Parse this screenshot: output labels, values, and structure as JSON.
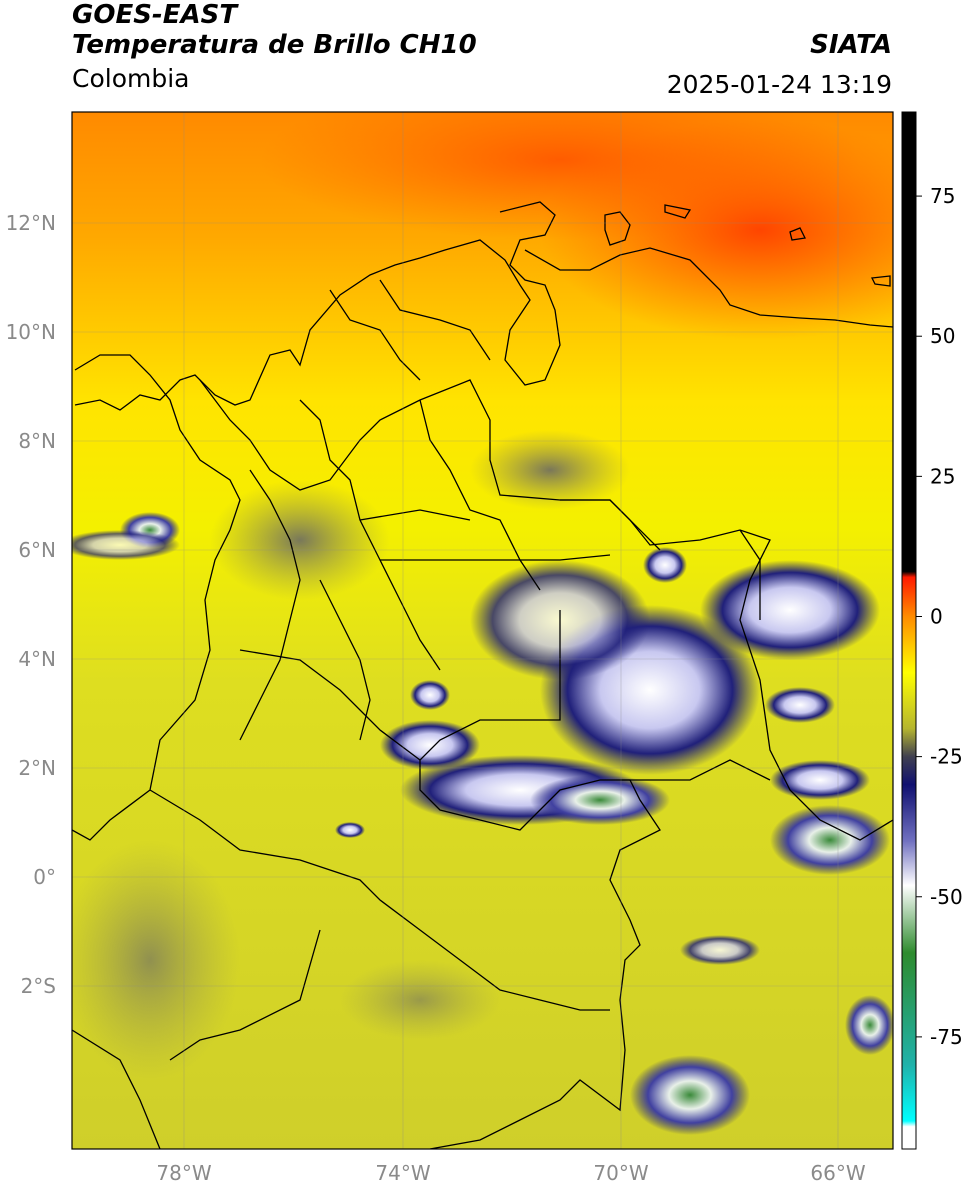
{
  "header": {
    "satellite": "GOES-EAST",
    "product": "Temperatura de Brillo CH10",
    "region": "Colombia",
    "organization": "SIATA",
    "timestamp": "2025-01-24 13:19"
  },
  "map": {
    "lat_labels": [
      "12°N",
      "10°N",
      "8°N",
      "6°N",
      "4°N",
      "2°N",
      "0°",
      "2°S"
    ],
    "lon_labels": [
      "78°W",
      "74°W",
      "70°W",
      "66°W"
    ],
    "extent": {
      "lon_min": -80,
      "lon_max": -65,
      "lat_min": -5,
      "lat_max": 14
    }
  },
  "colorbar": {
    "ticks": [
      "75",
      "50",
      "25",
      "0",
      "-25",
      "-50",
      "-75"
    ],
    "range": [
      -95,
      90
    ],
    "stops": [
      {
        "value": 90,
        "color": "#000000"
      },
      {
        "value": 8,
        "color": "#000000"
      },
      {
        "value": 7,
        "color": "#ff1a00"
      },
      {
        "value": 0,
        "color": "#ff8c00"
      },
      {
        "value": -10,
        "color": "#ffff00"
      },
      {
        "value": -20,
        "color": "#b5b52f"
      },
      {
        "value": -25,
        "color": "#404050"
      },
      {
        "value": -30,
        "color": "#101070"
      },
      {
        "value": -40,
        "color": "#7070c0"
      },
      {
        "value": -48,
        "color": "#ffffff"
      },
      {
        "value": -60,
        "color": "#2e8b2e"
      },
      {
        "value": -80,
        "color": "#20b2aa"
      },
      {
        "value": -90,
        "color": "#00ffff"
      },
      {
        "value": -91,
        "color": "#ffffff"
      }
    ]
  },
  "colors": {
    "warm": "#ff4a00",
    "mid": "#ffd800",
    "land": "#cfd02a",
    "cloud_cold": "#1a1a7a",
    "cloud_core": "#ffffff",
    "cloud_coldest": "#3a8a3a"
  }
}
